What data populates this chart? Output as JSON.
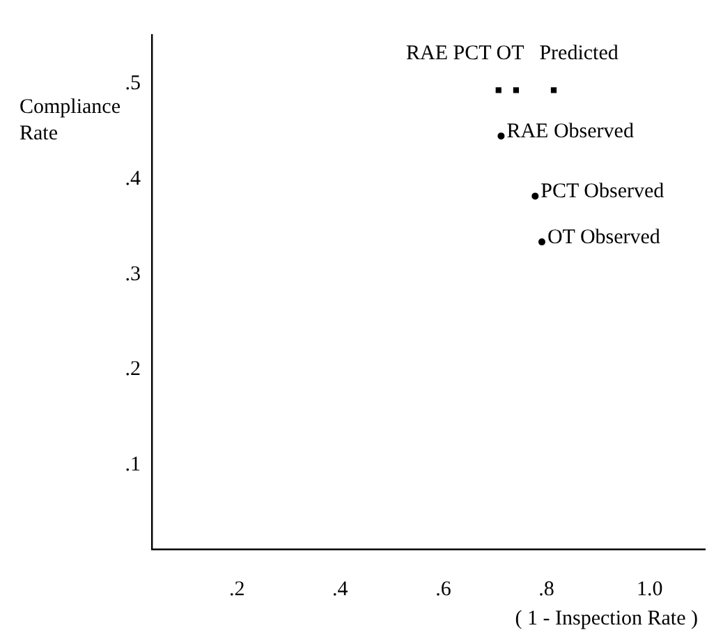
{
  "chart_data": {
    "type": "scatter",
    "xlabel": "( 1 - Inspection Rate )",
    "ylabel": "Compliance Rate",
    "xlim": [
      0.035,
      1.107
    ],
    "xticks": [
      {
        "value": 0.2,
        "label": ".2"
      },
      {
        "value": 0.4,
        "label": ".4"
      },
      {
        "value": 0.6,
        "label": ".6"
      },
      {
        "value": 0.8,
        "label": ".8"
      },
      {
        "value": 1.0,
        "label": "1.0"
      }
    ],
    "ylim": [
      0.012,
      0.551
    ],
    "yticks": [
      {
        "value": 0.1,
        "label": ".1"
      },
      {
        "value": 0.2,
        "label": ".2"
      },
      {
        "value": 0.3,
        "label": ".3"
      },
      {
        "value": 0.4,
        "label": ".4"
      },
      {
        "value": 0.5,
        "label": ".5"
      }
    ],
    "grid": false,
    "legend": false,
    "annotations": [
      "RAE PCT OT   Predicted"
    ],
    "series": [
      {
        "color": "#000000",
        "marker": "square",
        "x": [
          0.707,
          0.741,
          0.814
        ],
        "values": [
          0.493,
          0.493,
          0.493
        ]
      },
      {
        "color": "#000000",
        "marker": "circle",
        "x": [
          0.712,
          0.778,
          0.791
        ],
        "values": [
          0.445,
          0.382,
          0.334
        ],
        "value_labels": [
          "RAE Observed",
          "PCT Observed",
          "OT Observed"
        ]
      }
    ]
  }
}
